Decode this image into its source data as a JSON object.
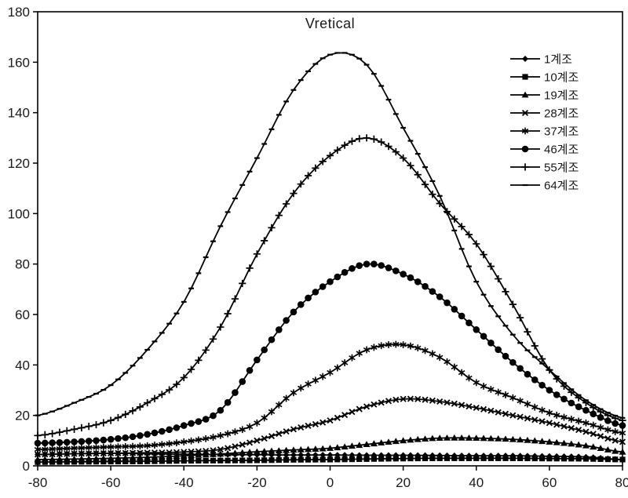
{
  "chart": {
    "title": "Vretical",
    "background_color": "#ffffff",
    "stroke_color": "#000000",
    "text_color": "#1a1a1a",
    "grid": false,
    "legend_position": "top-right"
  },
  "chart_data": {
    "type": "line",
    "title": "Vretical",
    "xlabel": "",
    "ylabel": "",
    "xlim": [
      -80,
      80
    ],
    "ylim": [
      0,
      180
    ],
    "grid": false,
    "legend_position": "top-right",
    "x_axis_ticks": [
      -80,
      -60,
      -40,
      -20,
      0,
      20,
      40,
      60,
      80
    ],
    "y_axis_ticks": [
      0,
      20,
      40,
      60,
      80,
      100,
      120,
      140,
      160,
      180
    ],
    "x": [
      -80,
      -70,
      -60,
      -50,
      -40,
      -30,
      -20,
      -10,
      0,
      10,
      20,
      30,
      40,
      50,
      60,
      70,
      80
    ],
    "series": [
      {
        "name": "1계조",
        "marker": "diamond",
        "color": "#000000",
        "values": [
          4.5,
          4.8,
          5,
          4.8,
          4.6,
          4.5,
          4.4,
          4.3,
          4.3,
          4.2,
          4.2,
          4.1,
          4,
          4,
          3.8,
          3.5,
          2.5
        ]
      },
      {
        "name": "10계조",
        "marker": "square",
        "color": "#000000",
        "values": [
          1.5,
          1.6,
          1.7,
          1.8,
          2,
          2.1,
          2.2,
          2.4,
          2.5,
          2.7,
          2.9,
          3,
          3,
          3,
          2.9,
          2.8,
          2.5
        ]
      },
      {
        "name": "19계조",
        "marker": "triangle",
        "color": "#000000",
        "values": [
          2.5,
          2.7,
          3,
          3.4,
          4,
          4.7,
          5.6,
          6.3,
          7,
          8.5,
          10,
          11,
          11,
          10.5,
          9.5,
          8,
          5.5
        ]
      },
      {
        "name": "28계조",
        "marker": "x",
        "color": "#000000",
        "values": [
          4.5,
          4.8,
          5,
          5.2,
          5.5,
          6.5,
          10,
          14.5,
          18,
          23.5,
          26.5,
          25.5,
          23,
          20,
          17,
          13.5,
          9.5
        ]
      },
      {
        "name": "37계조",
        "marker": "asterisk",
        "color": "#000000",
        "values": [
          6.5,
          7,
          7.5,
          8,
          9.5,
          12,
          17,
          29,
          37,
          46,
          48,
          43,
          33,
          27,
          21,
          17,
          13
        ]
      },
      {
        "name": "46계조",
        "marker": "circle",
        "color": "#000000",
        "values": [
          9,
          9.5,
          10.5,
          12.5,
          16,
          22,
          42,
          61,
          73,
          80,
          76,
          67,
          54,
          41,
          30,
          22,
          16
        ]
      },
      {
        "name": "55계조",
        "marker": "plus",
        "color": "#000000",
        "values": [
          12,
          14.5,
          18,
          25,
          35,
          55,
          84,
          108,
          123,
          130,
          122,
          104,
          88,
          64,
          38,
          25,
          18
        ]
      },
      {
        "name": "64계조",
        "marker": "dash",
        "color": "#000000",
        "values": [
          20,
          25,
          32,
          46,
          65,
          95,
          122,
          149,
          163,
          159,
          134,
          107,
          73,
          52,
          38,
          26,
          19
        ]
      }
    ]
  }
}
